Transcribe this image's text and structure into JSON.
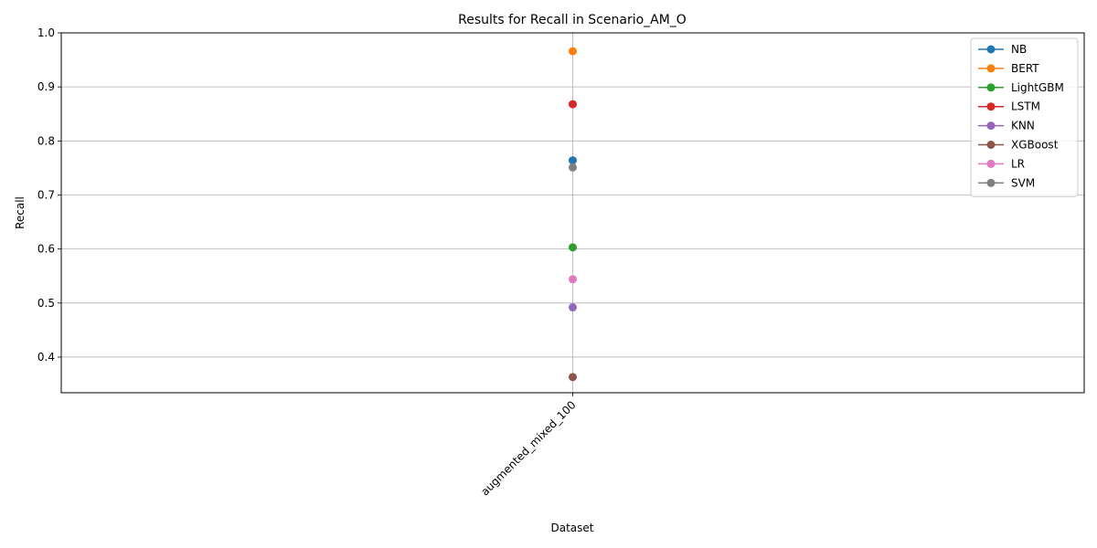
{
  "chart_data": {
    "type": "line",
    "title": "Results for Recall in Scenario_AM_O",
    "xlabel": "Dataset",
    "ylabel": "Recall",
    "categories": [
      "augmented_mixed_100"
    ],
    "ylim": [
      0.334,
      1.0
    ],
    "yticks": [
      0.4,
      0.5,
      0.6,
      0.7,
      0.8,
      0.9,
      1.0
    ],
    "grid": true,
    "legend_position": "top-right",
    "series": [
      {
        "name": "NB",
        "color": "#1f77b4",
        "values": [
          0.764
        ]
      },
      {
        "name": "BERT",
        "color": "#ff7f0e",
        "values": [
          0.966
        ]
      },
      {
        "name": "LightGBM",
        "color": "#2ca02c",
        "values": [
          0.603
        ]
      },
      {
        "name": "LSTM",
        "color": "#d62728",
        "values": [
          0.868
        ]
      },
      {
        "name": "KNN",
        "color": "#9467bd",
        "values": [
          0.492
        ]
      },
      {
        "name": "XGBoost",
        "color": "#8c564b",
        "values": [
          0.363
        ]
      },
      {
        "name": "LR",
        "color": "#e377c2",
        "values": [
          0.544
        ]
      },
      {
        "name": "SVM",
        "color": "#7f7f7f",
        "values": [
          0.751
        ]
      }
    ]
  }
}
